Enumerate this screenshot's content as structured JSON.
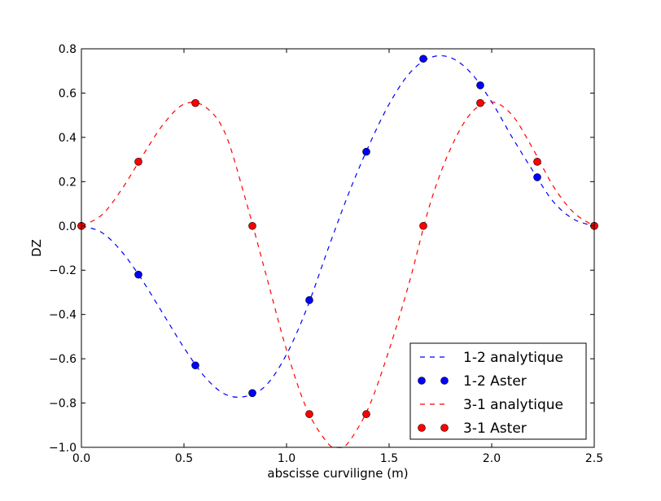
{
  "chart_data": {
    "type": "line",
    "title": "",
    "xlabel": "abscisse curviligne (m)",
    "ylabel": "DZ",
    "xlim": [
      0,
      2.5
    ],
    "ylim": [
      -1.0,
      0.8
    ],
    "xticks": [
      0.0,
      0.5,
      1.0,
      1.5,
      2.0,
      2.5
    ],
    "xtick_labels": [
      "0.0",
      "0.5",
      "1.0",
      "1.5",
      "2.0",
      "2.5"
    ],
    "yticks": [
      -1.0,
      -0.8,
      -0.6,
      -0.4,
      -0.2,
      0.0,
      0.2,
      0.4,
      0.6,
      0.8
    ],
    "ytick_labels": [
      "−1.0",
      "−0.8",
      "−0.6",
      "−0.4",
      "−0.2",
      "0.0",
      "0.2",
      "0.4",
      "0.6",
      "0.8"
    ],
    "grid": false,
    "legend_position": "lower-right",
    "series": [
      {
        "name": "1-2 analytique",
        "style": "dashed-line",
        "color": "#0000ff",
        "x": [
          0,
          0.1,
          0.2,
          0.3,
          0.4,
          0.5,
          0.6,
          0.7,
          0.8,
          0.9,
          1.0,
          1.1,
          1.2,
          1.3,
          1.4,
          1.5,
          1.6,
          1.7,
          1.8,
          1.9,
          2.0,
          2.1,
          2.2,
          2.3,
          2.4,
          2.5
        ],
        "y": [
          0,
          -0.03,
          -0.12,
          -0.25,
          -0.4,
          -0.55,
          -0.68,
          -0.76,
          -0.77,
          -0.72,
          -0.58,
          -0.37,
          -0.11,
          0.14,
          0.36,
          0.55,
          0.69,
          0.76,
          0.76,
          0.69,
          0.56,
          0.4,
          0.25,
          0.11,
          0.03,
          0
        ]
      },
      {
        "name": "1-2 Aster",
        "style": "markers",
        "color": "#0000ff",
        "x": [
          0,
          0.2778,
          0.5556,
          0.8333,
          1.1111,
          1.3889,
          1.6667,
          1.9444,
          2.2222,
          2.5
        ],
        "y": [
          0,
          -0.22,
          -0.63,
          -0.755,
          -0.335,
          0.335,
          0.755,
          0.635,
          0.22,
          0
        ]
      },
      {
        "name": "3-1 analytique",
        "style": "dashed-line",
        "color": "#ff0000",
        "x": [
          0,
          0.1,
          0.2,
          0.3,
          0.4,
          0.5,
          0.6,
          0.7,
          0.8,
          0.9,
          1.0,
          1.1,
          1.2,
          1.25,
          1.3,
          1.4,
          1.5,
          1.6,
          1.7,
          1.8,
          1.9,
          2.0,
          2.1,
          2.2,
          2.3,
          2.4,
          2.5
        ],
        "y": [
          0,
          0.05,
          0.17,
          0.32,
          0.46,
          0.55,
          0.54,
          0.42,
          0.12,
          -0.22,
          -0.56,
          -0.83,
          -0.98,
          -1.0,
          -0.98,
          -0.82,
          -0.56,
          -0.25,
          0.1,
          0.35,
          0.51,
          0.56,
          0.5,
          0.35,
          0.18,
          0.06,
          0
        ]
      },
      {
        "name": "3-1 Aster",
        "style": "markers",
        "color": "#ff0000",
        "x": [
          0,
          0.2778,
          0.5556,
          0.8333,
          1.1111,
          1.3889,
          1.6667,
          1.9444,
          2.2222,
          2.5
        ],
        "y": [
          0,
          0.29,
          0.555,
          0.0,
          -0.85,
          -0.85,
          0.0,
          0.555,
          0.29,
          0
        ]
      }
    ]
  }
}
